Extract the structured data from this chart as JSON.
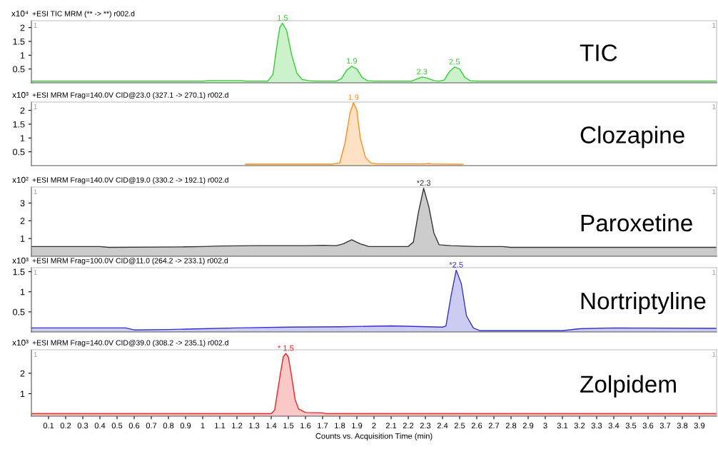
{
  "chart_data": [
    {
      "type": "area",
      "title": "+ESI TIC MRM (** -> **) r002.d",
      "ylabel": "x10⁴",
      "xlim": [
        0,
        4
      ],
      "ylim": [
        0,
        2.25
      ],
      "yticks": [
        0.5,
        1,
        1.5,
        2
      ],
      "tick_labels": "y",
      "grid": false,
      "series": [
        {
          "color": "#33cc33",
          "x": [
            0,
            1.0,
            1.03,
            1.23,
            1.25,
            1.38,
            1.41,
            1.43,
            1.45,
            1.466,
            1.49,
            1.52,
            1.55,
            1.58,
            1.62,
            1.65,
            1.78,
            1.81,
            1.84,
            1.87,
            1.9,
            1.93,
            1.96,
            2.0,
            2.22,
            2.25,
            2.28,
            2.31,
            2.35,
            2.38,
            2.41,
            2.44,
            2.47,
            2.5,
            2.53,
            2.56,
            2.6,
            4.0
          ],
          "values": [
            0.06,
            0.06,
            0.08,
            0.08,
            0.06,
            0.06,
            0.3,
            1.2,
            2.0,
            2.16,
            1.9,
            1.0,
            0.35,
            0.12,
            0.08,
            0.06,
            0.06,
            0.15,
            0.45,
            0.6,
            0.5,
            0.2,
            0.08,
            0.06,
            0.06,
            0.14,
            0.21,
            0.17,
            0.08,
            0.06,
            0.1,
            0.4,
            0.57,
            0.5,
            0.2,
            0.08,
            0.06,
            0.06
          ]
        }
      ],
      "annotations": [
        {
          "text": "1.5",
          "x": 1.466,
          "y": 2.16
        },
        {
          "text": "1.9",
          "x": 1.87,
          "y": 0.6
        },
        {
          "text": "2.3",
          "x": 2.28,
          "y": 0.21
        },
        {
          "text": "2.5",
          "x": 2.47,
          "y": 0.57
        },
        "TIC",
        "1",
        "1"
      ]
    },
    {
      "type": "area",
      "title": "+ESI MRM Frag=140.0V CID@23.0 (327.1 -> 270.1) r002.d",
      "ylabel": "x10³",
      "xlim": [
        0,
        4
      ],
      "ylim": [
        0,
        2.3
      ],
      "yticks": [
        0.5,
        1,
        1.5,
        2
      ],
      "tick_labels": "y",
      "grid": false,
      "series": [
        {
          "color": "#ff8c1a",
          "x": [
            1.25,
            1.75,
            1.8,
            1.83,
            1.86,
            1.88,
            1.9,
            1.92,
            1.95,
            1.98,
            2.02,
            2.3,
            2.32,
            2.34,
            2.52
          ],
          "values": [
            0.05,
            0.05,
            0.1,
            0.8,
            1.9,
            2.28,
            2.0,
            1.0,
            0.3,
            0.1,
            0.06,
            0.06,
            0.08,
            0.06,
            0.05
          ]
        }
      ],
      "annotations": [
        {
          "text": "1.9",
          "x": 1.88,
          "y": 2.28
        },
        "Clozapine",
        "1",
        "1"
      ]
    },
    {
      "type": "area",
      "title": "+ESI MRM Frag=140.0V CID@19.0 (330.2 -> 192.1) r002.d",
      "ylabel": "x10²",
      "xlim": [
        0,
        4
      ],
      "ylim": [
        0,
        3.9
      ],
      "yticks": [
        1,
        2,
        3
      ],
      "tick_labels": "y",
      "grid": false,
      "series": [
        {
          "color": "#333333",
          "x": [
            0,
            0.4,
            0.45,
            0.9,
            1.0,
            1.1,
            1.3,
            1.4,
            1.6,
            1.7,
            1.78,
            1.82,
            1.87,
            1.92,
            1.97,
            2.2,
            2.23,
            2.26,
            2.29,
            2.32,
            2.35,
            2.38,
            2.45,
            2.6,
            2.75,
            2.8,
            4.0
          ],
          "values": [
            0.55,
            0.55,
            0.5,
            0.53,
            0.55,
            0.58,
            0.6,
            0.6,
            0.6,
            0.62,
            0.6,
            0.7,
            0.93,
            0.7,
            0.55,
            0.55,
            0.8,
            2.5,
            3.83,
            2.8,
            1.3,
            0.65,
            0.6,
            0.55,
            0.55,
            0.5,
            0.5
          ]
        }
      ],
      "annotations": [
        {
          "text": "*2.3",
          "x": 2.29,
          "y": 3.83
        },
        "Paroxetine",
        "1",
        "1"
      ]
    },
    {
      "type": "area",
      "title": "+ESI MRM Frag=100.0V CID@11.0 (264.2 -> 233.1) r002.d",
      "ylabel": "x10³",
      "xlim": [
        0,
        4
      ],
      "ylim": [
        0,
        1.6
      ],
      "yticks": [
        0.5,
        1,
        1.5
      ],
      "tick_labels": "y",
      "grid": false,
      "series": [
        {
          "color": "#3333cc",
          "x": [
            0,
            0.55,
            0.6,
            0.8,
            1.0,
            1.2,
            1.5,
            1.8,
            2.1,
            2.4,
            2.42,
            2.45,
            2.48,
            2.51,
            2.54,
            2.58,
            2.62,
            3.1,
            3.2,
            3.4,
            4.0
          ],
          "values": [
            0.1,
            0.1,
            0.05,
            0.06,
            0.08,
            0.1,
            0.12,
            0.13,
            0.15,
            0.12,
            0.15,
            0.9,
            1.54,
            1.2,
            0.4,
            0.1,
            0.03,
            0.03,
            0.08,
            0.1,
            0.09
          ]
        }
      ],
      "annotations": [
        {
          "text": "*2.5",
          "x": 2.48,
          "y": 1.54
        },
        "Nortriptyline",
        "1",
        "1"
      ]
    },
    {
      "type": "area",
      "title": "+ESI MRM Frag=140.0V CID@39.0 (308.2 -> 235.1) r002.d",
      "ylabel": "x10³",
      "xlabel": "Counts vs. Acquisition Time (min)",
      "xlim": [
        0,
        4
      ],
      "ylim": [
        -0.1,
        3.15
      ],
      "yticks": [
        1,
        2
      ],
      "grid": false,
      "xticks": [
        0.1,
        0.2,
        0.3,
        0.4,
        0.5,
        0.6,
        0.7,
        0.8,
        0.9,
        1,
        1.1,
        1.2,
        1.3,
        1.4,
        1.5,
        1.6,
        1.7,
        1.8,
        1.9,
        2,
        2.1,
        2.2,
        2.3,
        2.4,
        2.5,
        2.6,
        2.7,
        2.8,
        2.9,
        3,
        3.1,
        3.2,
        3.3,
        3.4,
        3.5,
        3.6,
        3.7,
        3.8,
        3.9
      ],
      "series": [
        {
          "color": "#ee2222",
          "x": [
            0,
            1.4,
            1.42,
            1.45,
            1.47,
            1.485,
            1.5,
            1.52,
            1.54,
            1.56,
            1.6,
            1.7,
            1.72,
            4.0
          ],
          "values": [
            0.02,
            0.02,
            0.2,
            1.8,
            2.8,
            2.97,
            2.8,
            1.8,
            0.7,
            0.25,
            0.08,
            0.06,
            0.02,
            0.02
          ]
        }
      ],
      "annotations": [
        {
          "text": "* 1.5",
          "x": 1.485,
          "y": 2.97
        },
        "Zolpidem",
        "1",
        "1"
      ]
    }
  ]
}
